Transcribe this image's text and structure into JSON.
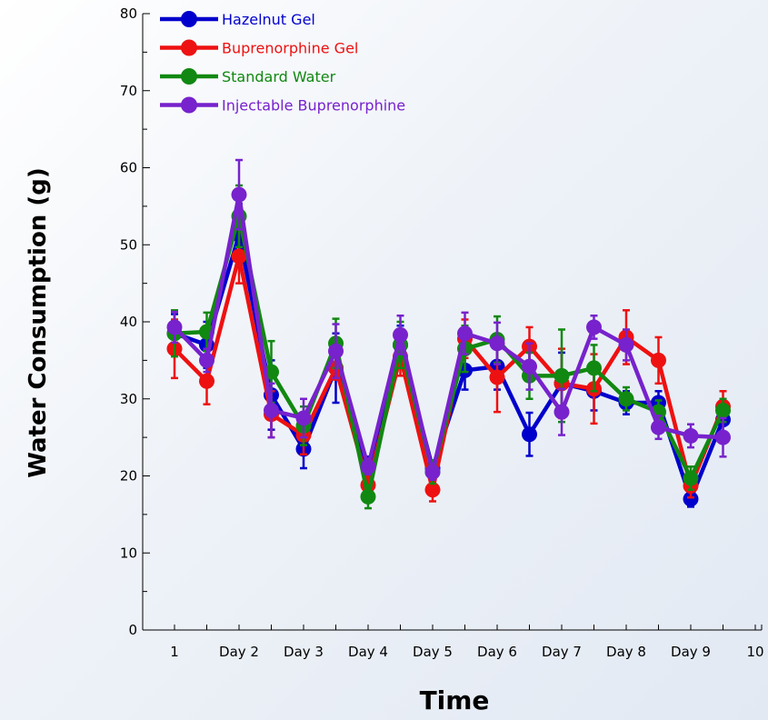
{
  "chart_data": {
    "type": "line",
    "xlabel": "Time",
    "ylabel": "Water Consumption (g)",
    "ylim": [
      0,
      80
    ],
    "y_ticks": [
      "0",
      "10",
      "20",
      "30",
      "40",
      "50",
      "60",
      "70",
      "80"
    ],
    "x_tick_labels": [
      "1",
      "Day 2",
      "Day 3",
      "Day 4",
      "Day 5",
      "Day 6",
      "Day 7",
      "Day 8",
      "Day 9",
      "10"
    ],
    "x": [
      1,
      1.5,
      2,
      2.5,
      3,
      3.5,
      4,
      4.5,
      5,
      5.5,
      6,
      6.5,
      7,
      7.5,
      8,
      8.5,
      9,
      9.5,
      10
    ],
    "legend_position": "top-left",
    "series": [
      {
        "name": "Hazelnut Gel",
        "color": "#0000cc",
        "values": [
          38.5,
          37.0,
          51.3,
          30.5,
          23.5,
          34.0,
          21.0,
          37.0,
          21.0,
          33.7,
          34.2,
          25.4,
          32.0,
          31.0,
          29.5,
          29.5,
          17.0,
          27.3,
          null
        ],
        "errors": [
          2.5,
          3.0,
          4.0,
          4.5,
          2.5,
          4.5,
          1.5,
          2.5,
          1.0,
          2.5,
          3.0,
          2.8,
          4.0,
          2.5,
          1.5,
          1.5,
          1.0,
          2.0,
          null
        ]
      },
      {
        "name": "Buprenorphine Gel",
        "color": "#ee1111",
        "values": [
          36.5,
          32.3,
          48.5,
          28.0,
          25.3,
          34.0,
          18.8,
          35.5,
          18.2,
          37.8,
          32.8,
          36.8,
          32.0,
          31.3,
          38.0,
          35.0,
          18.7,
          29.0,
          null
        ],
        "errors": [
          3.8,
          3.0,
          3.5,
          3.0,
          2.5,
          1.5,
          1.5,
          2.5,
          1.5,
          2.5,
          4.5,
          2.5,
          4.5,
          4.5,
          3.5,
          3.0,
          1.5,
          2.0,
          null
        ]
      },
      {
        "name": "Standard Water",
        "color": "#118811",
        "values": [
          38.5,
          38.7,
          53.7,
          33.5,
          26.5,
          37.2,
          17.3,
          37.0,
          20.5,
          36.5,
          37.7,
          33.0,
          33.0,
          34.0,
          30.0,
          28.3,
          19.7,
          28.5,
          null
        ],
        "errors": [
          3.0,
          2.5,
          4.0,
          4.0,
          2.5,
          3.2,
          1.5,
          3.0,
          1.5,
          3.0,
          3.0,
          3.0,
          6.0,
          3.0,
          1.5,
          1.5,
          1.5,
          1.5,
          null
        ]
      },
      {
        "name": "Injectable Buprenorphine",
        "color": "#7722cc",
        "values": [
          39.3,
          35.0,
          56.5,
          28.5,
          27.5,
          36.2,
          21.2,
          38.3,
          20.5,
          38.5,
          37.2,
          34.2,
          28.3,
          39.3,
          37.0,
          26.3,
          25.2,
          25.0,
          null
        ],
        "errors": [
          2.0,
          1.5,
          4.5,
          3.5,
          2.5,
          3.5,
          1.0,
          2.5,
          1.0,
          2.7,
          2.7,
          3.0,
          3.0,
          1.5,
          2.0,
          1.5,
          1.5,
          2.5,
          null
        ]
      }
    ]
  }
}
